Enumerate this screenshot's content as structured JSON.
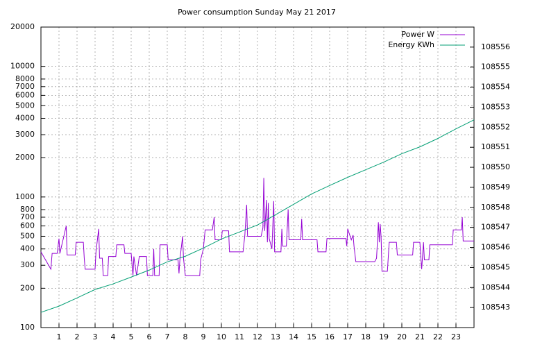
{
  "chart_data": {
    "type": "line",
    "title": "Power consumption Sunday May 21 2017",
    "xlim": [
      0,
      24
    ],
    "xticks": [
      1,
      2,
      3,
      4,
      5,
      6,
      7,
      8,
      9,
      10,
      11,
      12,
      13,
      14,
      15,
      16,
      17,
      18,
      19,
      20,
      21,
      22,
      23
    ],
    "ylim": [
      100,
      20000
    ],
    "yticks": [
      100,
      200,
      300,
      400,
      500,
      600,
      700,
      800,
      1000,
      2000,
      3000,
      4000,
      5000,
      6000,
      7000,
      8000,
      10000,
      20000
    ],
    "ylog": true,
    "y2lim": [
      108542,
      108557
    ],
    "y2ticks": [
      108543,
      108544,
      108545,
      108546,
      108547,
      108548,
      108549,
      108550,
      108551,
      108552,
      108553,
      108554,
      108555,
      108556
    ],
    "grid": true,
    "legend": "top-right",
    "series": [
      {
        "name": "Power W",
        "color": "#9400d3",
        "axis": "y",
        "x": [
          0,
          0.55,
          0.62,
          0.9,
          1.0,
          1.05,
          1.4,
          1.45,
          1.9,
          1.95,
          2.35,
          2.4,
          2.45,
          3.0,
          3.05,
          3.2,
          3.25,
          3.4,
          3.45,
          3.7,
          3.75,
          4.15,
          4.2,
          4.6,
          4.65,
          5.0,
          5.1,
          5.15,
          5.3,
          5.45,
          5.85,
          5.9,
          6.2,
          6.25,
          6.3,
          6.55,
          6.6,
          7.0,
          7.05,
          7.6,
          7.65,
          7.7,
          7.85,
          7.9,
          8.0,
          8.8,
          8.85,
          9.0,
          9.1,
          9.5,
          9.6,
          9.65,
          10.0,
          10.05,
          10.4,
          10.45,
          11.2,
          11.3,
          11.4,
          11.45,
          12.2,
          12.3,
          12.35,
          12.4,
          12.5,
          12.55,
          12.6,
          12.65,
          12.8,
          12.9,
          12.95,
          13.3,
          13.35,
          13.4,
          13.6,
          13.7,
          13.75,
          14.4,
          14.45,
          14.5,
          15.3,
          15.35,
          15.8,
          15.85,
          16.9,
          16.95,
          17.0,
          17.2,
          17.3,
          17.35,
          17.45,
          18.5,
          18.6,
          18.7,
          18.75,
          18.8,
          18.85,
          18.9,
          19.2,
          19.3,
          19.7,
          19.75,
          20.6,
          20.65,
          21.0,
          21.1,
          21.2,
          21.25,
          21.5,
          21.55,
          22.8,
          22.85,
          23.3,
          23.35,
          23.4,
          24
        ],
        "values": [
          380,
          280,
          370,
          370,
          480,
          370,
          600,
          360,
          360,
          450,
          450,
          340,
          280,
          280,
          380,
          570,
          340,
          340,
          250,
          250,
          350,
          350,
          430,
          430,
          370,
          370,
          250,
          350,
          250,
          350,
          350,
          250,
          250,
          400,
          250,
          250,
          430,
          430,
          330,
          330,
          260,
          330,
          500,
          340,
          250,
          250,
          330,
          400,
          560,
          560,
          700,
          470,
          470,
          550,
          550,
          380,
          380,
          510,
          870,
          500,
          500,
          580,
          1400,
          550,
          950,
          450,
          900,
          480,
          400,
          930,
          380,
          380,
          570,
          420,
          420,
          800,
          470,
          470,
          680,
          470,
          470,
          380,
          380,
          480,
          480,
          420,
          570,
          470,
          510,
          420,
          320,
          320,
          340,
          640,
          450,
          620,
          500,
          270,
          270,
          450,
          450,
          360,
          360,
          450,
          450,
          280,
          450,
          330,
          330,
          430,
          430,
          560,
          560,
          700,
          460,
          460
        ]
      },
      {
        "name": "Energy KWh",
        "color": "#009e73",
        "axis": "y2",
        "x": [
          0,
          1,
          2,
          3,
          4,
          5,
          6,
          7,
          8,
          9,
          10,
          11,
          12,
          13,
          14,
          15,
          16,
          17,
          18,
          19,
          20,
          21,
          22,
          23,
          24
        ],
        "values": [
          108542.76,
          108543.07,
          108543.48,
          108543.9,
          108544.18,
          108544.52,
          108544.87,
          108545.28,
          108545.56,
          108545.97,
          108546.42,
          108546.77,
          108547.12,
          108547.63,
          108548.15,
          108548.67,
          108549.09,
          108549.5,
          108549.88,
          108550.26,
          108550.68,
          108551.02,
          108551.44,
          108551.92,
          108552.37
        ]
      }
    ]
  }
}
